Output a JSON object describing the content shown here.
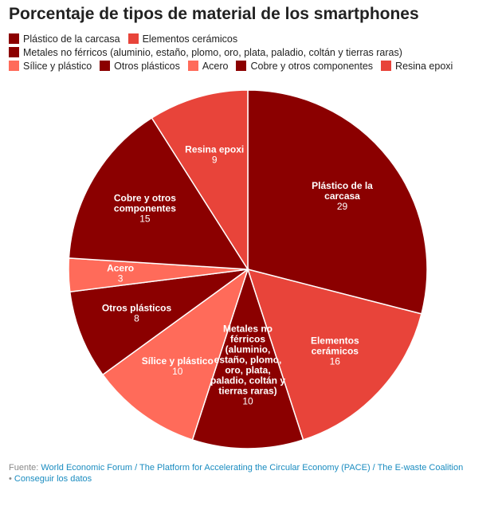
{
  "header": {
    "title": "Porcentaje de tipos de material de los smartphones"
  },
  "colors": {
    "dark_red": "#8b0000",
    "red": "#e8443a",
    "salmon": "#ff6b5a",
    "line": "#ffffff",
    "label": "#ffffff",
    "link": "#1a8cc0"
  },
  "chart_data": {
    "type": "pie",
    "title": "Porcentaje de tipos de material de los smartphones",
    "unit": "%",
    "legend_position": "top",
    "slices": [
      {
        "label": "Plástico de la carcasa",
        "value": 29,
        "color": "#8b0000",
        "label_lines": [
          "Plástico de la",
          "carcasa"
        ]
      },
      {
        "label": "Elementos cerámicos",
        "value": 16,
        "color": "#e8443a",
        "label_lines": [
          "Elementos",
          "cerámicos"
        ]
      },
      {
        "label": "Metales no férricos (aluminio, estaño, plomo, oro, plata, paladio, coltán y tierras raras)",
        "value": 10,
        "color": "#8b0000",
        "label_lines": [
          "Metales no",
          "férricos",
          "(aluminio,",
          "estaño, plomo,",
          "oro, plata,",
          "paladio, coltán y",
          "tierras raras)"
        ]
      },
      {
        "label": "Sílice y plástico",
        "value": 10,
        "color": "#ff6b5a",
        "label_lines": [
          "Sílice y plástico"
        ]
      },
      {
        "label": "Otros plásticos",
        "value": 8,
        "color": "#8b0000",
        "label_lines": [
          "Otros plásticos"
        ]
      },
      {
        "label": "Acero",
        "value": 3,
        "color": "#ff6b5a",
        "label_lines": [
          "Acero"
        ]
      },
      {
        "label": "Cobre y otros componentes",
        "value": 15,
        "color": "#8b0000",
        "label_lines": [
          "Cobre y otros",
          "componentes"
        ]
      },
      {
        "label": "Resina epoxi",
        "value": 9,
        "color": "#e8443a",
        "label_lines": [
          "Resina epoxi"
        ]
      }
    ]
  },
  "legend": {
    "items": [
      {
        "label": "Plástico de la carcasa",
        "color": "#8b0000"
      },
      {
        "label": "Elementos cerámicos",
        "color": "#e8443a"
      },
      {
        "label": "Metales no férricos (aluminio, estaño, plomo, oro, plata, paladio, coltán y tierras raras)",
        "color": "#8b0000"
      },
      {
        "label": "Sílice y plástico",
        "color": "#ff6b5a"
      },
      {
        "label": "Otros plásticos",
        "color": "#8b0000"
      },
      {
        "label": "Acero",
        "color": "#ff6b5a"
      },
      {
        "label": "Cobre y otros componentes",
        "color": "#8b0000"
      },
      {
        "label": "Resina epoxi",
        "color": "#e8443a"
      }
    ]
  },
  "footer": {
    "source_prefix": "Fuente: ",
    "source_link": "World Economic Forum / The Platform for Accelerating the Circular Economy (PACE) / The E-waste Coalition",
    "get_data_prefix": "• ",
    "get_data_link": "Conseguir los datos"
  }
}
